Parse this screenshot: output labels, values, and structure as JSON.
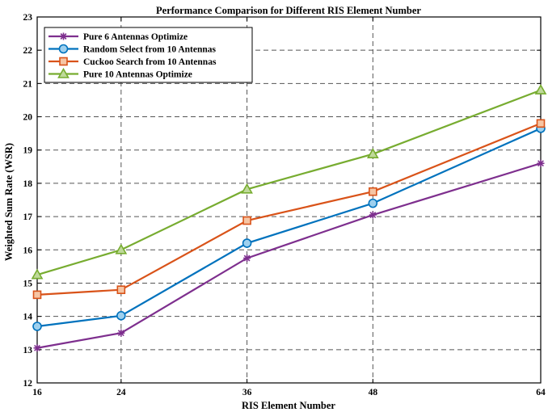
{
  "chart_data": {
    "type": "line",
    "title": "Performance Comparison for Different RIS Element Number",
    "xlabel": "RIS Element Number",
    "ylabel": "Weighted Sum Rate (WSR)",
    "x": [
      16,
      24,
      36,
      48,
      64
    ],
    "xticks": [
      "16",
      "24",
      "36",
      "48",
      "64"
    ],
    "ylim": [
      12,
      23
    ],
    "yticks": [
      "12",
      "13",
      "14",
      "15",
      "16",
      "17",
      "18",
      "19",
      "20",
      "21",
      "22",
      "23"
    ],
    "grid": true,
    "legend_position": "top-left",
    "series": [
      {
        "name": "Pure 6 Antennas Optimize",
        "color": "#7E2F8E",
        "marker": "asterisk",
        "values": [
          13.05,
          13.5,
          15.75,
          17.05,
          18.6
        ]
      },
      {
        "name": "Random Select from 10 Antennas",
        "color": "#0072BD",
        "marker": "circle",
        "values": [
          13.7,
          14.02,
          16.2,
          17.4,
          19.65
        ]
      },
      {
        "name": "Cuckoo Search from 10 Antennas",
        "color": "#D95319",
        "marker": "square",
        "values": [
          14.65,
          14.8,
          16.88,
          17.75,
          19.8
        ]
      },
      {
        "name": "Pure 10 Antennas Optimize",
        "color": "#77AC30",
        "marker": "triangle",
        "values": [
          15.25,
          16.0,
          17.82,
          18.88,
          20.8
        ]
      }
    ]
  }
}
